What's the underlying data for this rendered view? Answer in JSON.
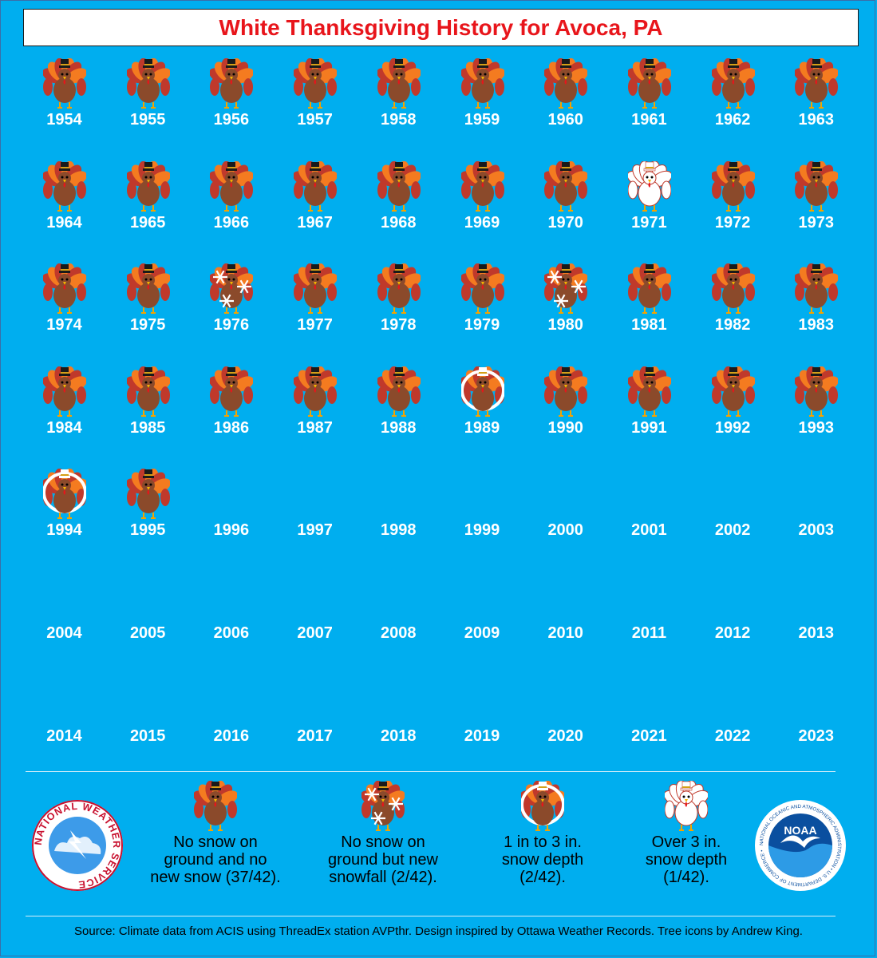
{
  "title": "White Thanksgiving History for Avoca, PA",
  "chart_data": {
    "type": "table",
    "title": "White Thanksgiving History for Avoca, PA",
    "columns": 10,
    "categories_key": {
      "none": "No snow on ground and no new snow (37/42).",
      "new_snow": "No snow on ground but new snowfall (2/42).",
      "depth_1_3": "1 in to 3 in. snow depth (2/42).",
      "depth_over_3": "Over 3 in. snow depth (1/42)."
    },
    "years": [
      {
        "year": "1954",
        "cat": "none"
      },
      {
        "year": "1955",
        "cat": "none"
      },
      {
        "year": "1956",
        "cat": "none"
      },
      {
        "year": "1957",
        "cat": "none"
      },
      {
        "year": "1958",
        "cat": "none"
      },
      {
        "year": "1959",
        "cat": "none"
      },
      {
        "year": "1960",
        "cat": "none"
      },
      {
        "year": "1961",
        "cat": "none"
      },
      {
        "year": "1962",
        "cat": "none"
      },
      {
        "year": "1963",
        "cat": "none"
      },
      {
        "year": "1964",
        "cat": "none"
      },
      {
        "year": "1965",
        "cat": "none"
      },
      {
        "year": "1966",
        "cat": "none"
      },
      {
        "year": "1967",
        "cat": "none"
      },
      {
        "year": "1968",
        "cat": "none"
      },
      {
        "year": "1969",
        "cat": "none"
      },
      {
        "year": "1970",
        "cat": "none"
      },
      {
        "year": "1971",
        "cat": "depth_over_3"
      },
      {
        "year": "1972",
        "cat": "none"
      },
      {
        "year": "1973",
        "cat": "none"
      },
      {
        "year": "1974",
        "cat": "none"
      },
      {
        "year": "1975",
        "cat": "none"
      },
      {
        "year": "1976",
        "cat": "new_snow"
      },
      {
        "year": "1977",
        "cat": "none"
      },
      {
        "year": "1978",
        "cat": "none"
      },
      {
        "year": "1979",
        "cat": "none"
      },
      {
        "year": "1980",
        "cat": "new_snow"
      },
      {
        "year": "1981",
        "cat": "none"
      },
      {
        "year": "1982",
        "cat": "none"
      },
      {
        "year": "1983",
        "cat": "none"
      },
      {
        "year": "1984",
        "cat": "none"
      },
      {
        "year": "1985",
        "cat": "none"
      },
      {
        "year": "1986",
        "cat": "none"
      },
      {
        "year": "1987",
        "cat": "none"
      },
      {
        "year": "1988",
        "cat": "none"
      },
      {
        "year": "1989",
        "cat": "depth_1_3"
      },
      {
        "year": "1990",
        "cat": "none"
      },
      {
        "year": "1991",
        "cat": "none"
      },
      {
        "year": "1992",
        "cat": "none"
      },
      {
        "year": "1993",
        "cat": "none"
      },
      {
        "year": "1994",
        "cat": "depth_1_3"
      },
      {
        "year": "1995",
        "cat": "none"
      },
      {
        "year": "1996",
        "cat": ""
      },
      {
        "year": "1997",
        "cat": ""
      },
      {
        "year": "1998",
        "cat": ""
      },
      {
        "year": "1999",
        "cat": ""
      },
      {
        "year": "2000",
        "cat": ""
      },
      {
        "year": "2001",
        "cat": ""
      },
      {
        "year": "2002",
        "cat": ""
      },
      {
        "year": "2003",
        "cat": ""
      },
      {
        "year": "2004",
        "cat": ""
      },
      {
        "year": "2005",
        "cat": ""
      },
      {
        "year": "2006",
        "cat": ""
      },
      {
        "year": "2007",
        "cat": ""
      },
      {
        "year": "2008",
        "cat": ""
      },
      {
        "year": "2009",
        "cat": ""
      },
      {
        "year": "2010",
        "cat": ""
      },
      {
        "year": "2011",
        "cat": ""
      },
      {
        "year": "2012",
        "cat": ""
      },
      {
        "year": "2013",
        "cat": ""
      },
      {
        "year": "2014",
        "cat": ""
      },
      {
        "year": "2015",
        "cat": ""
      },
      {
        "year": "2016",
        "cat": ""
      },
      {
        "year": "2017",
        "cat": ""
      },
      {
        "year": "2018",
        "cat": ""
      },
      {
        "year": "2019",
        "cat": ""
      },
      {
        "year": "2020",
        "cat": ""
      },
      {
        "year": "2021",
        "cat": ""
      },
      {
        "year": "2022",
        "cat": ""
      },
      {
        "year": "2023",
        "cat": ""
      }
    ]
  },
  "legend": [
    {
      "cat": "none",
      "label": "No snow on\nground and no\nnew snow (37/42)."
    },
    {
      "cat": "new_snow",
      "label": "No snow on\nground but new\nsnowfall (2/42)."
    },
    {
      "cat": "depth_1_3",
      "label": "1 in to 3 in.\nsnow depth\n(2/42)."
    },
    {
      "cat": "depth_over_3",
      "label": "Over 3 in.\nsnow depth\n(1/42)."
    }
  ],
  "logos": {
    "nws": "NATIONAL WEATHER SERVICE",
    "noaa_center": "NOAA",
    "noaa_ring": "NATIONAL OCEANIC AND ATMOSPHERIC ADMINISTRATION • U.S. DEPARTMENT OF COMMERCE •"
  },
  "source": "Source: Climate data from ACIS using ThreadEx station AVPthr. Design inspired by Ottawa Weather Records. Tree icons by Andrew King.",
  "colors": {
    "background": "#00aeef",
    "title_text": "#e8151b",
    "turkey_body": "#8b4a2b",
    "feather_red": "#c0392b",
    "feather_orange": "#f47b20",
    "snow": "#ffffff"
  },
  "icons": {
    "none": "turkey-icon",
    "new_snow": "turkey-snowflakes-icon",
    "depth_1_3": "turkey-snow-trim-icon",
    "depth_over_3": "turkey-snow-covered-icon"
  }
}
